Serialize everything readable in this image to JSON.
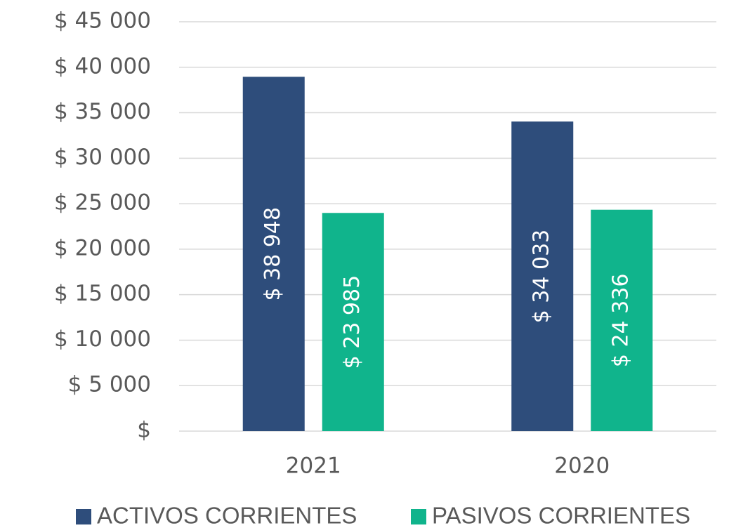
{
  "chart_data": {
    "type": "bar",
    "categories": [
      "2021",
      "2020"
    ],
    "series": [
      {
        "name": "ACTIVOS CORRIENTES",
        "color": "#2e4d7b",
        "values": [
          38948,
          34033
        ],
        "value_labels": [
          "$ 38 948",
          "$ 34 033"
        ]
      },
      {
        "name": "PASIVOS CORRIENTES",
        "color": "#10b48c",
        "values": [
          23985,
          24336
        ],
        "value_labels": [
          "$ 23 985",
          "$ 24 336"
        ]
      }
    ],
    "ylim": [
      0,
      45000
    ],
    "yticks": [
      {
        "value": 0,
        "label": "$"
      },
      {
        "value": 5000,
        "label": "$ 5 000"
      },
      {
        "value": 10000,
        "label": "$ 10 000"
      },
      {
        "value": 15000,
        "label": "$ 15 000"
      },
      {
        "value": 20000,
        "label": "$ 20 000"
      },
      {
        "value": 25000,
        "label": "$ 25 000"
      },
      {
        "value": 30000,
        "label": "$ 30 000"
      },
      {
        "value": 35000,
        "label": "$ 35 000"
      },
      {
        "value": 40000,
        "label": "$ 40 000"
      },
      {
        "value": 45000,
        "label": "$ 45 000"
      }
    ],
    "grid": true,
    "legend": "bottom"
  }
}
